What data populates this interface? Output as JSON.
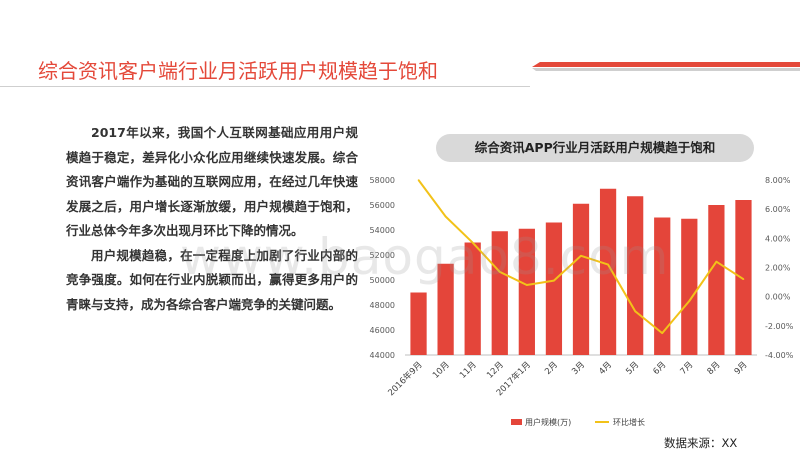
{
  "title": "综合资讯客户端行业月活跃用户规模趋于饱和",
  "paragraphs": [
    "2017年以来，我国个人互联网基础应用用户规模趋于稳定，差异化小众化应用继续快速发展。综合资讯客户端作为基础的互联网应用，在经过几年快速发展之后，用户增长逐渐放缓，用户规模趋于饱和，行业总体今年多次出现月环比下降的情况。",
    "用户规模趋稳，在一定程度上加剧了行业内部的竞争强度。如何在行业内脱颖而出，赢得更多用户的青睐与支持，成为各综合客户端竞争的关键问题。"
  ],
  "source": "数据来源：XX",
  "watermark": "www.baogao8.com",
  "colors": {
    "title": "#e4493a",
    "bar": "#e4453a",
    "line": "#f2c219",
    "pill": "#d9d9d9"
  },
  "chart_data": {
    "type": "bar",
    "title": "综合资讯APP行业月活跃用户规模趋于饱和",
    "categories": [
      "2016年9月",
      "10月",
      "11月",
      "12月",
      "2017年1月",
      "2月",
      "3月",
      "4月",
      "5月",
      "6月",
      "7月",
      "8月",
      "9月"
    ],
    "series": [
      {
        "name": "用户规模(万)",
        "type": "bar",
        "axis": "left",
        "values": [
          49000,
          51300,
          53000,
          53900,
          54100,
          54600,
          56100,
          57300,
          56700,
          55000,
          54900,
          56000,
          56400
        ]
      },
      {
        "name": "环比增长",
        "type": "line",
        "axis": "right",
        "values": [
          0.08,
          0.055,
          0.037,
          0.017,
          0.008,
          0.011,
          0.028,
          0.022,
          -0.01,
          -0.025,
          -0.003,
          0.024,
          0.012
        ]
      }
    ],
    "ylim": [
      44000,
      58000
    ],
    "yticks": [
      "44000",
      "46000",
      "48000",
      "50000",
      "52000",
      "54000",
      "56000",
      "58000"
    ],
    "y2lim": [
      -0.04,
      0.08
    ],
    "y2ticks": [
      "-4.00%",
      "-2.00%",
      "0.00%",
      "2.00%",
      "4.00%",
      "6.00%",
      "8.00%"
    ],
    "legend": [
      "用户规模(万)",
      "环比增长"
    ],
    "legend_position": "bottom",
    "grid": false
  }
}
